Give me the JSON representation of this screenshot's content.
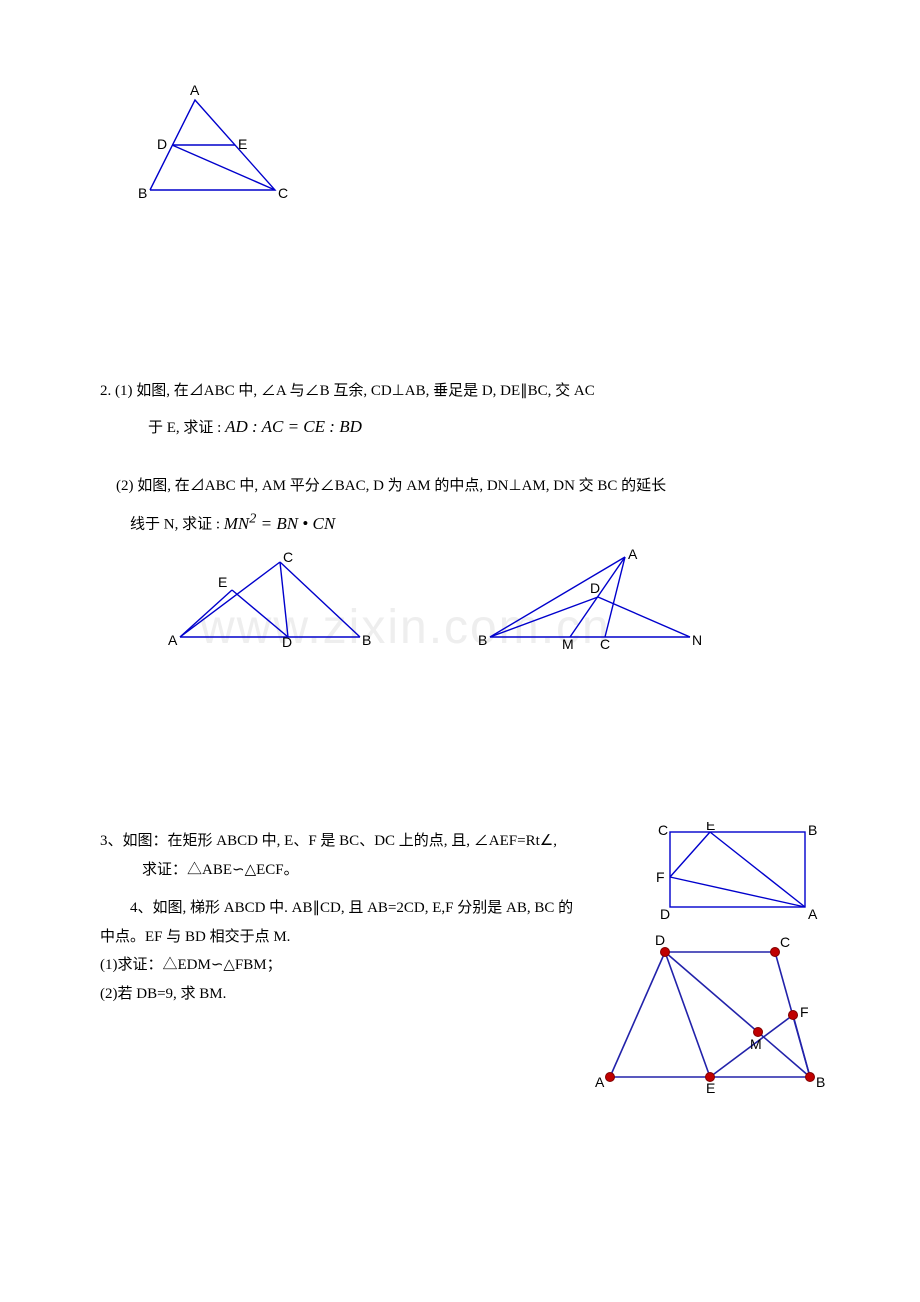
{
  "watermark": "www.zixin.com.cn",
  "figure1": {
    "labels": {
      "A": "A",
      "B": "B",
      "C": "C",
      "D": "D",
      "E": "E"
    },
    "stroke": "#0000cc",
    "stroke_width": 1.4
  },
  "problem2": {
    "line1_a": "2.   (1)   如图,  在⊿ABC 中,  ∠A 与∠B 互余,  CD⊥AB,  垂足是 D,  DE∥BC,  交 AC",
    "line1_b": "于 E,  求证 :  ",
    "formula1": "AD : AC = CE : BD",
    "line2_a": "(2) 如图,  在⊿ABC 中,  AM 平分∠BAC,  D 为 AM 的中点,  DN⊥AM,  DN 交 BC 的延长",
    "line2_b": "线于 N,   求证 : ",
    "formula2_a": "MN",
    "formula2_sup": "2",
    "formula2_b": " = BN • CN"
  },
  "figure2a": {
    "labels": {
      "A": "A",
      "B": "B",
      "C": "C",
      "D": "D",
      "E": "E"
    },
    "stroke": "#0000cc",
    "stroke_width": 1.4
  },
  "figure2b": {
    "labels": {
      "A": "A",
      "B": "B",
      "C": "C",
      "D": "D",
      "M": "M",
      "N": "N"
    },
    "stroke": "#0000cc",
    "stroke_width": 1.4
  },
  "problem3": {
    "line1": "3、如图：在矩形 ABCD 中,  E、F 是 BC、DC 上的点,  且,  ∠AEF=Rt∠,",
    "line2": "求证：△ABE∽△ECF。"
  },
  "problem4": {
    "line1": "4、如图,  梯形 ABCD 中.  AB∥CD,  且 AB=2CD,    E,F 分别是 AB,  BC 的",
    "line2": "中点。EF 与 BD 相交于点 M.",
    "line3": "(1)求证：△EDM∽△FBM；",
    "line4": "(2)若 DB=9,   求 BM."
  },
  "figure3": {
    "labels": {
      "A": "A",
      "B": "B",
      "C": "C",
      "D": "D",
      "E": "E",
      "F": "F"
    },
    "stroke": "#0000cc",
    "stroke_width": 1.4
  },
  "figure4": {
    "labels": {
      "A": "A",
      "B": "B",
      "C": "C",
      "D": "D",
      "E": "E",
      "F": "F",
      "M": "M"
    },
    "stroke": "#2222aa",
    "stroke_width": 1.6,
    "dot_fill": "#c00000",
    "dot_stroke": "#800000",
    "dot_r": 4.5
  }
}
